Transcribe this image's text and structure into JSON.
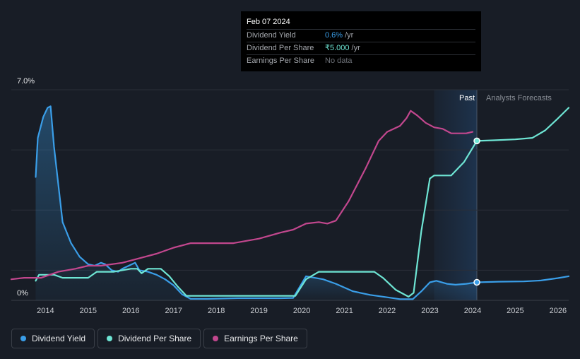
{
  "tooltip": {
    "date": "Feb 07 2024",
    "rows": [
      {
        "label": "Dividend Yield",
        "value": "0.6%",
        "unit": "/yr",
        "color": "#3a9ee8"
      },
      {
        "label": "Dividend Per Share",
        "value": "₹5.000",
        "unit": "/yr",
        "color": "#6ee5d4"
      },
      {
        "label": "Earnings Per Share",
        "value": "No data",
        "unit": "",
        "color": "#6d7178"
      }
    ]
  },
  "legend": [
    {
      "label": "Dividend Yield",
      "color": "#3a9ee8"
    },
    {
      "label": "Dividend Per Share",
      "color": "#6ee5d4"
    },
    {
      "label": "Earnings Per Share",
      "color": "#c2478e"
    }
  ],
  "chart_data": {
    "type": "line",
    "y_top_label": "7.0%",
    "y_bottom_label": "0%",
    "ylim": [
      0,
      7.0
    ],
    "xlim": [
      2013.2,
      2026.25
    ],
    "x_ticks": [
      "2014",
      "2015",
      "2016",
      "2017",
      "2018",
      "2019",
      "2020",
      "2021",
      "2022",
      "2023",
      "2024",
      "2025",
      "2026"
    ],
    "past_label": "Past",
    "forecast_label": "Analysts Forecasts",
    "divider_x": 2024.1,
    "highlight_start_x": 2023.1,
    "grid": true,
    "series": [
      {
        "name": "Dividend Yield",
        "color": "#3a9ee8",
        "fill": true,
        "points": [
          [
            2013.77,
            4.1
          ],
          [
            2013.82,
            5.4
          ],
          [
            2013.95,
            6.1
          ],
          [
            2014.05,
            6.4
          ],
          [
            2014.12,
            6.45
          ],
          [
            2014.2,
            5.1
          ],
          [
            2014.4,
            2.6
          ],
          [
            2014.6,
            1.9
          ],
          [
            2014.8,
            1.45
          ],
          [
            2015.0,
            1.2
          ],
          [
            2015.15,
            1.15
          ],
          [
            2015.3,
            1.25
          ],
          [
            2015.4,
            1.2
          ],
          [
            2015.55,
            1.0
          ],
          [
            2015.7,
            0.95
          ],
          [
            2015.8,
            1.05
          ],
          [
            2015.95,
            1.15
          ],
          [
            2016.1,
            1.25
          ],
          [
            2016.2,
            1.0
          ],
          [
            2016.4,
            0.95
          ],
          [
            2016.6,
            0.85
          ],
          [
            2016.8,
            0.7
          ],
          [
            2017.0,
            0.5
          ],
          [
            2017.2,
            0.2
          ],
          [
            2017.4,
            0.05
          ],
          [
            2017.8,
            0.05
          ],
          [
            2018.5,
            0.07
          ],
          [
            2019.0,
            0.07
          ],
          [
            2019.5,
            0.07
          ],
          [
            2019.8,
            0.08
          ],
          [
            2020.1,
            0.8
          ],
          [
            2020.5,
            0.7
          ],
          [
            2020.8,
            0.55
          ],
          [
            2021.2,
            0.3
          ],
          [
            2021.6,
            0.18
          ],
          [
            2022.0,
            0.1
          ],
          [
            2022.3,
            0.04
          ],
          [
            2022.6,
            0.04
          ],
          [
            2022.8,
            0.3
          ],
          [
            2023.0,
            0.6
          ],
          [
            2023.15,
            0.65
          ],
          [
            2023.4,
            0.55
          ],
          [
            2023.6,
            0.52
          ],
          [
            2023.85,
            0.55
          ],
          [
            2024.1,
            0.6
          ],
          [
            2024.6,
            0.62
          ],
          [
            2025.2,
            0.63
          ],
          [
            2025.6,
            0.66
          ],
          [
            2026.0,
            0.74
          ],
          [
            2026.25,
            0.8
          ]
        ]
      },
      {
        "name": "Dividend Per Share",
        "color": "#6ee5d4",
        "fill": false,
        "points": [
          [
            2013.77,
            0.65
          ],
          [
            2013.85,
            0.85
          ],
          [
            2014.2,
            0.85
          ],
          [
            2014.4,
            0.75
          ],
          [
            2015.0,
            0.75
          ],
          [
            2015.2,
            0.95
          ],
          [
            2015.6,
            0.95
          ],
          [
            2016.0,
            1.05
          ],
          [
            2016.15,
            1.05
          ],
          [
            2016.25,
            0.9
          ],
          [
            2016.4,
            1.05
          ],
          [
            2016.7,
            1.05
          ],
          [
            2016.9,
            0.8
          ],
          [
            2017.1,
            0.45
          ],
          [
            2017.3,
            0.15
          ],
          [
            2017.6,
            0.15
          ],
          [
            2018.5,
            0.15
          ],
          [
            2019.5,
            0.15
          ],
          [
            2019.85,
            0.15
          ],
          [
            2020.1,
            0.7
          ],
          [
            2020.4,
            0.95
          ],
          [
            2021.0,
            0.95
          ],
          [
            2021.7,
            0.95
          ],
          [
            2021.9,
            0.75
          ],
          [
            2022.2,
            0.35
          ],
          [
            2022.5,
            0.12
          ],
          [
            2022.62,
            0.25
          ],
          [
            2022.8,
            2.3
          ],
          [
            2023.0,
            4.05
          ],
          [
            2023.1,
            4.15
          ],
          [
            2023.5,
            4.15
          ],
          [
            2023.8,
            4.6
          ],
          [
            2024.1,
            5.3
          ],
          [
            2024.5,
            5.32
          ],
          [
            2025.0,
            5.35
          ],
          [
            2025.4,
            5.4
          ],
          [
            2025.7,
            5.65
          ],
          [
            2026.0,
            6.05
          ],
          [
            2026.25,
            6.4
          ]
        ]
      },
      {
        "name": "Earnings Per Share",
        "color": "#c2478e",
        "fill": false,
        "points": [
          [
            2013.2,
            0.7
          ],
          [
            2013.5,
            0.75
          ],
          [
            2013.9,
            0.75
          ],
          [
            2014.3,
            0.95
          ],
          [
            2014.7,
            1.05
          ],
          [
            2015.0,
            1.15
          ],
          [
            2015.3,
            1.15
          ],
          [
            2015.8,
            1.25
          ],
          [
            2016.2,
            1.4
          ],
          [
            2016.6,
            1.55
          ],
          [
            2017.0,
            1.75
          ],
          [
            2017.4,
            1.9
          ],
          [
            2017.8,
            1.9
          ],
          [
            2018.4,
            1.9
          ],
          [
            2019.0,
            2.05
          ],
          [
            2019.5,
            2.25
          ],
          [
            2019.8,
            2.35
          ],
          [
            2020.1,
            2.55
          ],
          [
            2020.4,
            2.6
          ],
          [
            2020.6,
            2.55
          ],
          [
            2020.8,
            2.65
          ],
          [
            2021.1,
            3.3
          ],
          [
            2021.5,
            4.4
          ],
          [
            2021.8,
            5.3
          ],
          [
            2022.0,
            5.6
          ],
          [
            2022.3,
            5.8
          ],
          [
            2022.45,
            6.05
          ],
          [
            2022.55,
            6.3
          ],
          [
            2022.7,
            6.15
          ],
          [
            2022.9,
            5.9
          ],
          [
            2023.1,
            5.75
          ],
          [
            2023.3,
            5.7
          ],
          [
            2023.5,
            5.55
          ],
          [
            2023.85,
            5.55
          ],
          [
            2024.0,
            5.6
          ]
        ]
      }
    ],
    "markers": [
      {
        "series": "Dividend Per Share",
        "x": 2024.1,
        "y": 5.3
      },
      {
        "series": "Dividend Yield",
        "x": 2024.1,
        "y": 0.6
      }
    ]
  }
}
